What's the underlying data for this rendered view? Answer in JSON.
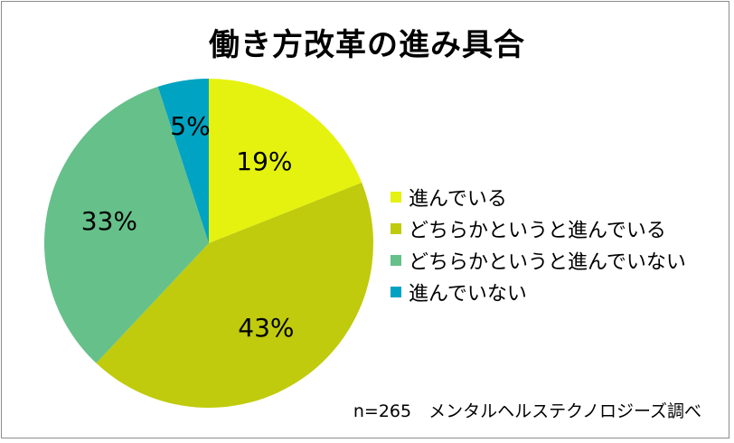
{
  "chart_data": {
    "type": "pie",
    "title": "働き方改革の進み具合",
    "categories": [
      "進んでいる",
      "どちらかというと進んでいる",
      "どちらかというと進んでいない",
      "進んでいない"
    ],
    "values": [
      19,
      43,
      33,
      5
    ],
    "data_labels": [
      "19%",
      "43%",
      "33%",
      "5%"
    ],
    "colors": [
      "#e5f20f",
      "#bfcb0c",
      "#66c08a",
      "#00a3c1"
    ],
    "legend_position": "right"
  },
  "footnote": "n=265　メンタルヘルステクノロジーズ調べ"
}
